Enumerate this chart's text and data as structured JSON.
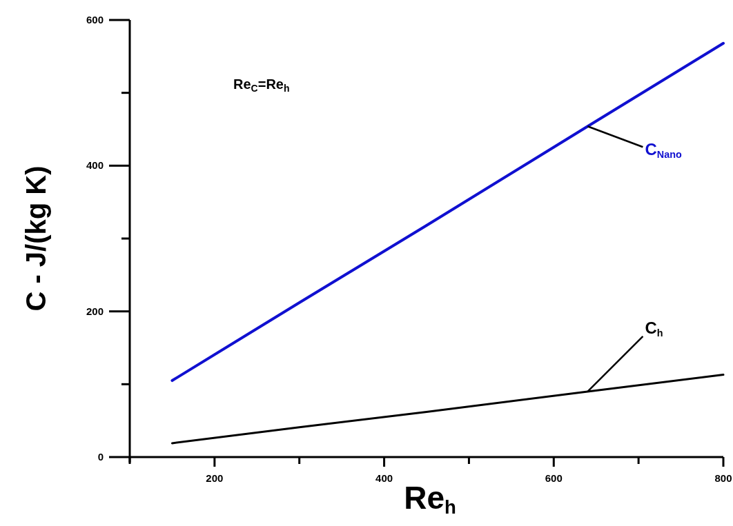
{
  "chart_data": {
    "type": "line",
    "xlabel": "Re$_{h}$",
    "ylabel": "C - J/(kg K)",
    "x": [
      150,
      300,
      450,
      640,
      800
    ],
    "series": [
      {
        "color": "#1010d0",
        "values": [
          105,
          212,
          318,
          454,
          568
        ]
      },
      {
        "color": "#000000",
        "values": [
          19,
          41,
          62,
          90,
          113
        ]
      }
    ],
    "xlim": [
      100,
      800
    ],
    "xticks": [
      {
        "value": 100,
        "label": null
      },
      200,
      {
        "value": 300,
        "label": null
      },
      400,
      {
        "value": 500,
        "label": null
      },
      600,
      {
        "value": 700,
        "label": null
      },
      800
    ],
    "ylim": [
      0,
      600
    ],
    "yticks": [
      0,
      {
        "value": 100,
        "label": null
      },
      200,
      {
        "value": 300,
        "label": null
      },
      400,
      {
        "value": 500,
        "label": null
      },
      600
    ],
    "annotations": [
      "Re$_{C}$=Re$_{h}$",
      {
        "text": "C$_{Nano}$",
        "x": 640,
        "y": 454
      },
      {
        "text": "C$_{h}$",
        "x": 640,
        "y": 90
      }
    ],
    "grid": false,
    "marker": "none",
    "line_style": "solid"
  }
}
